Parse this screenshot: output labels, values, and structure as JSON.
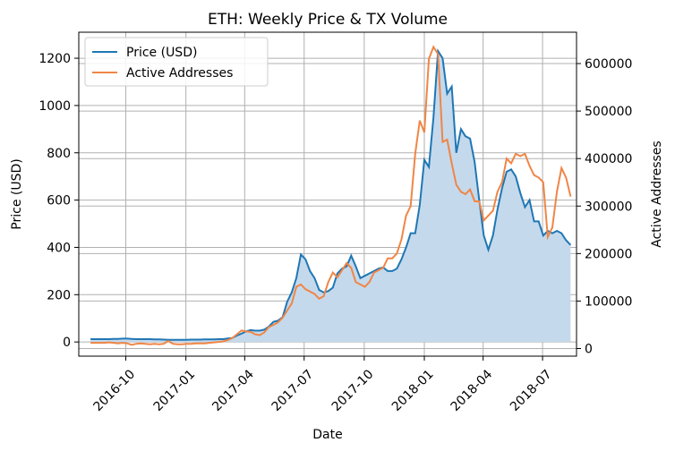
{
  "chart_data": {
    "type": "line",
    "title": "ETH: Weekly Price & TX Volume",
    "xlabel": "Date",
    "ylabel": "Price (USD)",
    "y2label": "Active Addresses",
    "xlim": [
      "2016-07-21",
      "2018-08-22"
    ],
    "ylim": [
      -60,
      1310
    ],
    "y2lim": [
      -16000,
      666000
    ],
    "grid": true,
    "legend_position": "top-left",
    "x_ticks": [
      "2016-10-01",
      "2017-01-01",
      "2017-04-01",
      "2017-07-01",
      "2017-10-01",
      "2018-01-01",
      "2018-04-01",
      "2018-07-01"
    ],
    "x_tick_labels": [
      "2016-10",
      "2017-01",
      "2017-04",
      "2017-07",
      "2017-10",
      "2018-01",
      "2018-04",
      "2018-07"
    ],
    "y_ticks": [
      0,
      200,
      400,
      600,
      800,
      1000,
      1200
    ],
    "y2_ticks": [
      0,
      100000,
      200000,
      300000,
      400000,
      500000,
      600000
    ],
    "start_date": "2016-08-08",
    "interval_days": 7,
    "series": [
      {
        "name": "Price (USD)",
        "axis": "left",
        "color": "#1f77b4",
        "fill_color": "#c5d9ec",
        "values": [
          12,
          12,
          12,
          12,
          12,
          13,
          13,
          14,
          14,
          13,
          12,
          12,
          12,
          12,
          11,
          11,
          10,
          9,
          9,
          9,
          9,
          9,
          10,
          10,
          10,
          11,
          11,
          11,
          12,
          12,
          15,
          17,
          27,
          35,
          45,
          50,
          48,
          48,
          52,
          65,
          85,
          90,
          105,
          170,
          210,
          270,
          370,
          350,
          300,
          270,
          220,
          210,
          215,
          230,
          290,
          310,
          320,
          365,
          320,
          270,
          280,
          290,
          300,
          310,
          315,
          300,
          300,
          310,
          350,
          400,
          460,
          460,
          580,
          770,
          740,
          950,
          1230,
          1200,
          1050,
          1080,
          800,
          900,
          870,
          860,
          760,
          600,
          450,
          390,
          450,
          560,
          650,
          720,
          730,
          700,
          630,
          570,
          600,
          510,
          510,
          450,
          470,
          460,
          470,
          460,
          430,
          410
        ]
      },
      {
        "name": "Active Addresses",
        "axis": "right",
        "color": "#ef8646",
        "values": [
          12000,
          12000,
          12000,
          12000,
          13000,
          12000,
          11000,
          12000,
          11000,
          8000,
          10000,
          11000,
          10000,
          9000,
          10000,
          9000,
          10000,
          16000,
          10000,
          9000,
          9000,
          10000,
          10000,
          11000,
          11000,
          11000,
          12000,
          13000,
          14000,
          15000,
          18000,
          22000,
          30000,
          38000,
          36000,
          35000,
          30000,
          28000,
          34000,
          45000,
          50000,
          55000,
          65000,
          80000,
          95000,
          130000,
          135000,
          125000,
          120000,
          115000,
          105000,
          110000,
          140000,
          160000,
          150000,
          165000,
          180000,
          170000,
          140000,
          135000,
          130000,
          140000,
          160000,
          165000,
          170000,
          190000,
          190000,
          200000,
          230000,
          280000,
          300000,
          410000,
          480000,
          455000,
          610000,
          635000,
          620000,
          435000,
          440000,
          390000,
          345000,
          330000,
          325000,
          335000,
          310000,
          310000,
          270000,
          280000,
          290000,
          330000,
          350000,
          400000,
          390000,
          410000,
          405000,
          410000,
          385000,
          365000,
          360000,
          350000,
          235000,
          255000,
          330000,
          380000,
          360000,
          320000
        ]
      }
    ]
  }
}
